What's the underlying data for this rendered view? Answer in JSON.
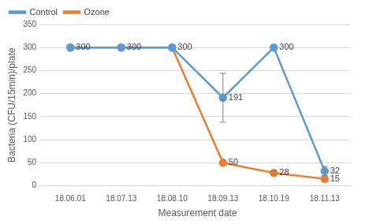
{
  "chart_data": {
    "type": "line",
    "x_label": "Measurement date",
    "y_label": "Bacteria (CFU/15min)/plate",
    "categories": [
      "18.06.01",
      "18.07.13",
      "18.08.10",
      "18.09.13",
      "18.10.19",
      "18.11.13"
    ],
    "series": [
      {
        "name": "Control",
        "color": "#5b9bd5",
        "marker": "circle",
        "values": [
          300,
          300,
          300,
          191,
          300,
          32
        ],
        "errors": [
          null,
          null,
          null,
          53,
          null,
          10
        ]
      },
      {
        "name": "Ozone",
        "color": "#ed7d31",
        "marker": "circle",
        "values": [
          300,
          300,
          300,
          50,
          28,
          15
        ],
        "errors": [
          null,
          null,
          null,
          null,
          4,
          null
        ]
      }
    ],
    "ylim": [
      0,
      350
    ],
    "yticks": [
      0,
      50,
      100,
      150,
      200,
      250,
      300,
      350
    ],
    "grid": true,
    "legend": "upper left",
    "data_labels": true
  }
}
